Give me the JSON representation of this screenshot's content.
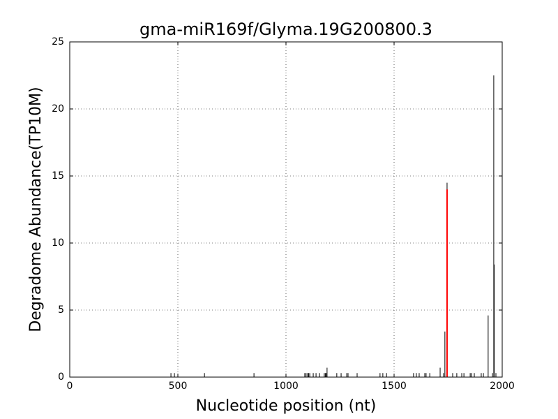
{
  "chart_data": {
    "type": "stem",
    "title": "gma-miR169f/Glyma.19G200800.3",
    "x_label": "Nucleotide position (nt)",
    "y_label": "Degradome Abundance(TP10M)",
    "xlim": [
      0,
      2000
    ],
    "xticks": [
      0,
      500,
      1000,
      1500,
      2000
    ],
    "ylim": [
      0,
      25
    ],
    "yticks": [
      0,
      5,
      10,
      15,
      20,
      25
    ],
    "grid": true,
    "series": [
      {
        "color": "#000000",
        "x": [
          468,
          484,
          623,
          852,
          1087,
          1093,
          1100,
          1105,
          1110,
          1126,
          1139,
          1155,
          1177,
          1182,
          1187,
          1190,
          1235,
          1255,
          1281,
          1287,
          1329,
          1435,
          1448,
          1465,
          1590,
          1603,
          1616,
          1642,
          1648,
          1665,
          1713,
          1729,
          1735,
          1745,
          1771,
          1790,
          1813,
          1823,
          1852,
          1858,
          1871,
          1903,
          1913,
          1935,
          1955,
          1961,
          1963,
          1971
        ],
        "values": [
          0.3,
          0.3,
          0.3,
          0.3,
          0.3,
          0.3,
          0.3,
          0.3,
          0.3,
          0.3,
          0.3,
          0.3,
          0.3,
          0.3,
          0.3,
          0.7,
          0.3,
          0.3,
          0.3,
          0.3,
          0.3,
          0.3,
          0.3,
          0.3,
          0.3,
          0.3,
          0.3,
          0.3,
          0.3,
          0.3,
          0.7,
          0.3,
          3.4,
          14.5,
          0.3,
          0.3,
          0.3,
          0.3,
          0.3,
          0.3,
          0.3,
          0.3,
          0.3,
          4.6,
          0.3,
          22.5,
          8.4,
          0.3
        ]
      },
      {
        "color": "#ff0000",
        "width": 2,
        "x": [
          1745
        ],
        "values": [
          14
        ]
      }
    ]
  }
}
